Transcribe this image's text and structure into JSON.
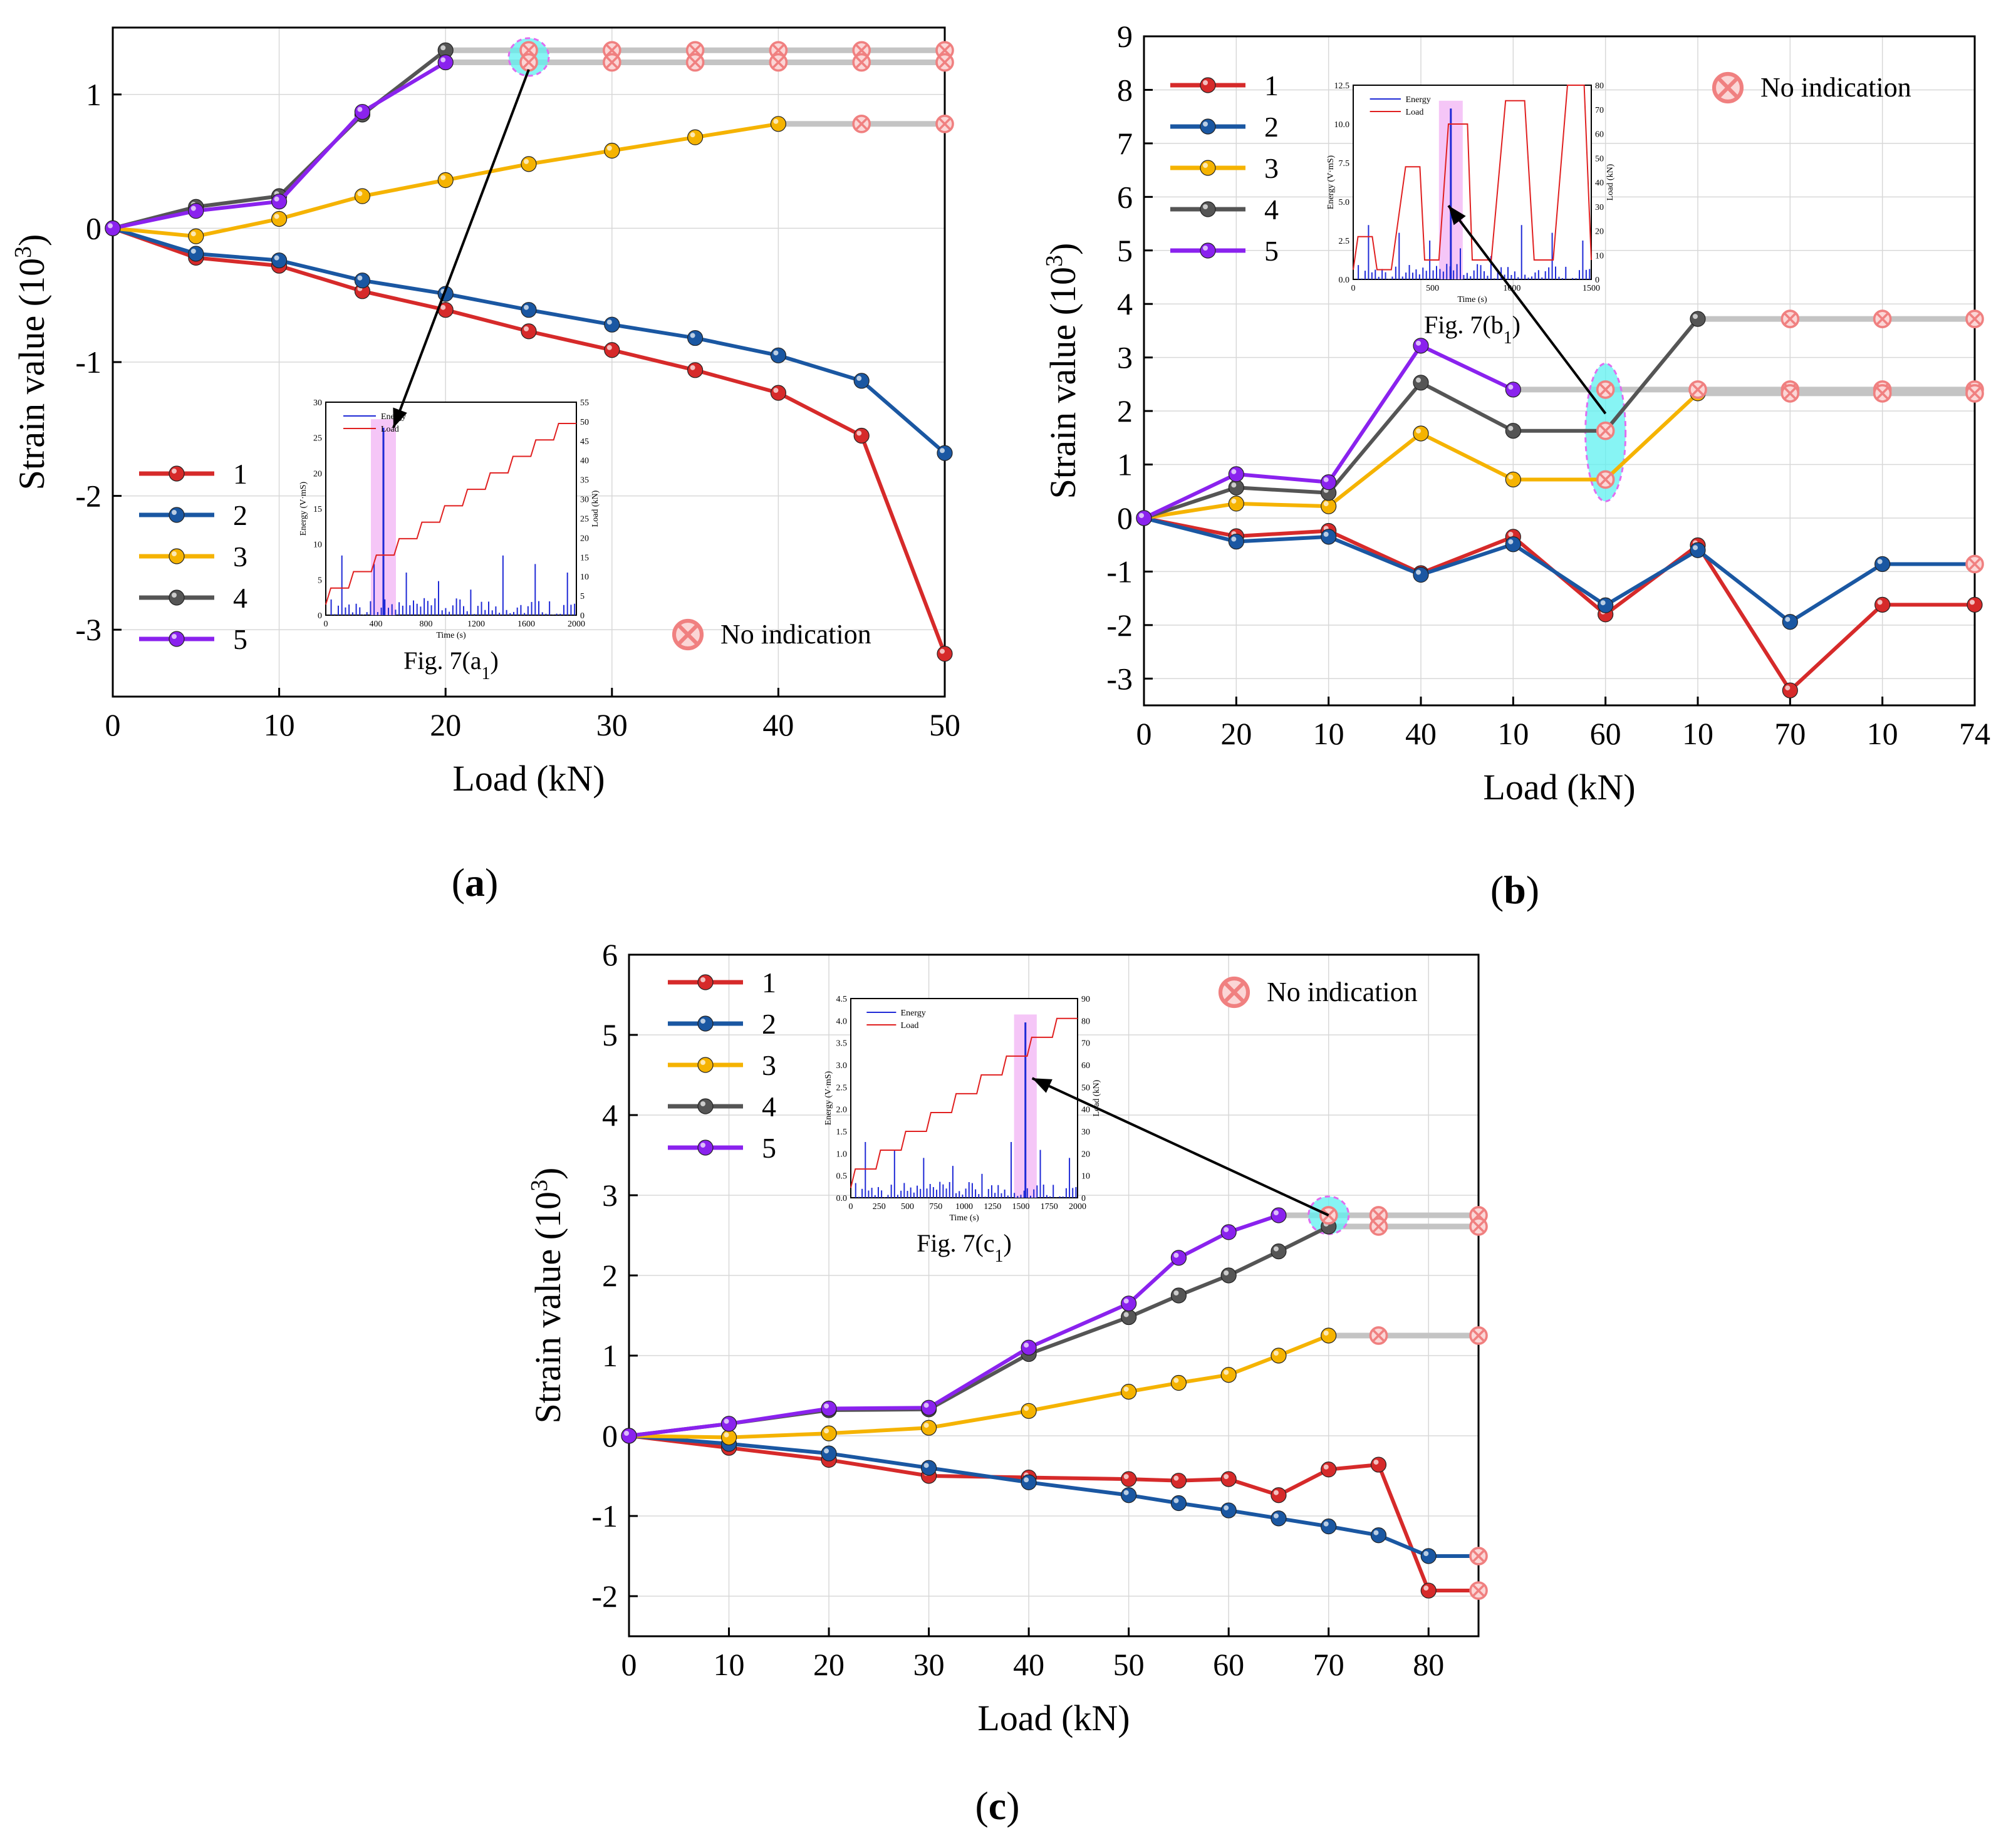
{
  "chart_data": [
    {
      "type": "line",
      "panel": "(a)",
      "panel_letter": "a",
      "xlabel": "Load (kN)",
      "ylabel": "Strain value (10^3)",
      "ylabel_base": "Strain value (10",
      "ylabel_exp": "3",
      "ylabel_close": ")",
      "xlim": [
        0,
        50
      ],
      "ylim": [
        -3.5,
        1.5
      ],
      "x_ticks": [
        0,
        10,
        20,
        30,
        40,
        50
      ],
      "x_tick_labels": [
        "0",
        "10",
        "20",
        "30",
        "40",
        "50"
      ],
      "y_ticks": [
        -3,
        -2,
        -1,
        0,
        1
      ],
      "y_tick_labels": [
        "-3",
        "-2",
        "-1",
        "0",
        "1"
      ],
      "grid": true,
      "legend_position": "lower-left",
      "no_indication_label": "No indication",
      "no_indication_position": "lower-right",
      "series": [
        {
          "name": "1",
          "color": "#d62a2a",
          "x": [
            0,
            5,
            10,
            15,
            20,
            25,
            30,
            35,
            40,
            45,
            50
          ],
          "values": [
            0,
            -0.22,
            -0.28,
            -0.47,
            -0.61,
            -0.77,
            -0.91,
            -1.06,
            -1.23,
            -1.55,
            -3.18
          ]
        },
        {
          "name": "2",
          "color": "#1a57a2",
          "x": [
            0,
            5,
            10,
            15,
            20,
            25,
            30,
            35,
            40,
            45,
            50
          ],
          "values": [
            0,
            -0.19,
            -0.24,
            -0.39,
            -0.49,
            -0.61,
            -0.72,
            -0.82,
            -0.95,
            -1.14,
            -1.68
          ]
        },
        {
          "name": "3",
          "color": "#f5b301",
          "x": [
            0,
            5,
            10,
            15,
            20,
            25,
            30,
            35,
            40,
            45,
            50
          ],
          "values": [
            0,
            -0.06,
            0.07,
            0.24,
            0.36,
            0.48,
            0.58,
            0.68,
            0.78,
            0.78,
            0.78
          ],
          "solid_until_index": 8
        },
        {
          "name": "4",
          "color": "#555555",
          "x": [
            0,
            5,
            10,
            15,
            20,
            25,
            30,
            35,
            40,
            45,
            50
          ],
          "values": [
            0,
            0.16,
            0.24,
            0.85,
            1.33,
            1.33,
            1.33,
            1.33,
            1.33,
            1.33,
            1.33
          ],
          "solid_until_index": 4
        },
        {
          "name": "5",
          "color": "#8a22ee",
          "x": [
            0,
            5,
            10,
            15,
            20,
            25,
            30,
            35,
            40,
            45,
            50
          ],
          "values": [
            0,
            0.13,
            0.2,
            0.87,
            1.24,
            1.24,
            1.24,
            1.24,
            1.24,
            1.24,
            1.24
          ],
          "solid_until_index": 4
        }
      ],
      "no_indication_points": [
        {
          "x": 25,
          "y": 1.33
        },
        {
          "x": 30,
          "y": 1.33
        },
        {
          "x": 35,
          "y": 1.33
        },
        {
          "x": 40,
          "y": 1.33
        },
        {
          "x": 45,
          "y": 1.33
        },
        {
          "x": 50,
          "y": 1.33
        },
        {
          "x": 25,
          "y": 1.24
        },
        {
          "x": 30,
          "y": 1.24
        },
        {
          "x": 35,
          "y": 1.24
        },
        {
          "x": 40,
          "y": 1.24
        },
        {
          "x": 45,
          "y": 1.24
        },
        {
          "x": 50,
          "y": 1.24
        },
        {
          "x": 45,
          "y": 0.78
        },
        {
          "x": 50,
          "y": 0.78
        }
      ],
      "highlight": {
        "x": 25,
        "y": 1.28
      },
      "inset": {
        "caption_prefix": "Fig. 7(a",
        "caption_sub": "1",
        "caption_suffix": ")",
        "legend": [
          "Energy",
          "Load"
        ],
        "xlabel": "Time (s)",
        "ylabel_left": "Energy (V·mS)",
        "ylabel_right": "Load (kN)",
        "x_tick_labels": [
          "0",
          "400",
          "800",
          "1200",
          "1600",
          "2000"
        ],
        "y_left_tick_labels": [
          "0",
          "5",
          "10",
          "15",
          "20",
          "25",
          "30"
        ],
        "y_right_tick_labels": [
          "0",
          "5",
          "10",
          "15",
          "20",
          "25",
          "30",
          "35",
          "40",
          "45",
          "50",
          "55"
        ]
      }
    },
    {
      "type": "line",
      "panel": "(b)",
      "panel_letter": "b",
      "xlabel": "Load (kN)",
      "ylabel": "Strain value (10^3)",
      "ylabel_base": "Strain value (10",
      "ylabel_exp": "3",
      "ylabel_close": ")",
      "xlim": [
        0,
        9
      ],
      "ylim": [
        -3.5,
        9
      ],
      "x_ticks": [
        0,
        1,
        2,
        3,
        4,
        5,
        6,
        7,
        8,
        9
      ],
      "x_tick_labels": [
        "0",
        "20",
        "10",
        "40",
        "10",
        "60",
        "10",
        "70",
        "10",
        "74"
      ],
      "y_ticks": [
        -3,
        -2,
        -1,
        0,
        1,
        2,
        3,
        4,
        5,
        6,
        7,
        8,
        9
      ],
      "y_tick_labels": [
        "-3",
        "-2",
        "-1",
        "0",
        "1",
        "2",
        "3",
        "4",
        "5",
        "6",
        "7",
        "8",
        "9"
      ],
      "grid": true,
      "legend_position": "upper-left",
      "no_indication_label": "No indication",
      "no_indication_position": "upper-right",
      "series": [
        {
          "name": "1",
          "color": "#d62a2a",
          "x": [
            0,
            1,
            2,
            3,
            4,
            5,
            6,
            7,
            8,
            9
          ],
          "values": [
            0,
            -0.34,
            -0.24,
            -1.03,
            -0.35,
            -1.8,
            -0.51,
            -3.22,
            -1.62,
            -1.62
          ]
        },
        {
          "name": "2",
          "color": "#1a57a2",
          "x": [
            0,
            1,
            2,
            3,
            4,
            5,
            6,
            7,
            8,
            9
          ],
          "values": [
            0,
            -0.44,
            -0.35,
            -1.06,
            -0.49,
            -1.63,
            -0.6,
            -1.94,
            -0.86,
            -0.86
          ]
        },
        {
          "name": "3",
          "color": "#f5b301",
          "x": [
            0,
            1,
            2,
            3,
            4,
            5,
            6,
            7,
            8,
            9
          ],
          "values": [
            0,
            0.27,
            0.22,
            1.58,
            0.72,
            0.72,
            2.33,
            2.33,
            2.33,
            2.33
          ],
          "solid_until_index": 6
        },
        {
          "name": "4",
          "color": "#555555",
          "x": [
            0,
            1,
            2,
            3,
            4,
            5,
            6,
            7,
            8,
            9
          ],
          "values": [
            0,
            0.57,
            0.47,
            2.53,
            1.63,
            1.63,
            3.72,
            3.72,
            3.72,
            3.72
          ],
          "solid_until_index": 6
        },
        {
          "name": "5",
          "color": "#8a22ee",
          "x": [
            0,
            1,
            2,
            3,
            4,
            5,
            6,
            7,
            8,
            9
          ],
          "values": [
            0,
            0.82,
            0.67,
            3.22,
            2.4,
            2.4,
            2.4,
            2.4,
            2.4,
            2.4
          ],
          "solid_until_index": 4
        }
      ],
      "no_indication_points": [
        {
          "x": 5,
          "y": 2.4
        },
        {
          "x": 6,
          "y": 2.4
        },
        {
          "x": 7,
          "y": 2.4
        },
        {
          "x": 8,
          "y": 2.4
        },
        {
          "x": 9,
          "y": 2.4
        },
        {
          "x": 5,
          "y": 1.63
        },
        {
          "x": 5,
          "y": 0.72
        },
        {
          "x": 7,
          "y": 3.72
        },
        {
          "x": 8,
          "y": 3.72
        },
        {
          "x": 9,
          "y": 3.72
        },
        {
          "x": 7,
          "y": 2.33
        },
        {
          "x": 8,
          "y": 2.33
        },
        {
          "x": 9,
          "y": 2.33
        },
        {
          "x": 9,
          "y": -0.86
        }
      ],
      "highlight": {
        "x": 5,
        "y": 1.6
      },
      "inset": {
        "caption_prefix": "Fig. 7(b",
        "caption_sub": "1",
        "caption_suffix": ")",
        "legend": [
          "Energy",
          "Load"
        ],
        "xlabel": "Time (s)",
        "ylabel_left": "Energy (V·mS)",
        "ylabel_right": "Load (kN)",
        "x_tick_labels": [
          "0",
          "500",
          "1000",
          "1500"
        ],
        "y_left_tick_labels": [
          "0.0",
          "2.5",
          "5.0",
          "7.5",
          "10.0",
          "12.5"
        ],
        "y_right_tick_labels": [
          "0",
          "10",
          "20",
          "30",
          "40",
          "50",
          "60",
          "70",
          "80"
        ]
      }
    },
    {
      "type": "line",
      "panel": "(c)",
      "panel_letter": "c",
      "xlabel": "Load (kN)",
      "ylabel": "Strain value (10^3)",
      "ylabel_base": "Strain value (10",
      "ylabel_exp": "3",
      "ylabel_close": ")",
      "xlim": [
        0,
        85
      ],
      "ylim": [
        -2.5,
        6
      ],
      "x_ticks": [
        0,
        10,
        20,
        30,
        40,
        50,
        60,
        70,
        80
      ],
      "x_tick_labels": [
        "0",
        "10",
        "20",
        "30",
        "40",
        "50",
        "60",
        "70",
        "80"
      ],
      "y_ticks": [
        -2,
        -1,
        0,
        1,
        2,
        3,
        4,
        5,
        6
      ],
      "y_tick_labels": [
        "-2",
        "-1",
        "0",
        "1",
        "2",
        "3",
        "4",
        "5",
        "6"
      ],
      "grid": true,
      "legend_position": "upper-left",
      "no_indication_label": "No indication",
      "no_indication_position": "upper-right",
      "series": [
        {
          "name": "1",
          "color": "#d62a2a",
          "x": [
            0,
            10,
            20,
            30,
            40,
            50,
            55,
            60,
            65,
            70,
            75,
            80,
            85
          ],
          "values": [
            0,
            -0.15,
            -0.3,
            -0.5,
            -0.52,
            -0.54,
            -0.56,
            -0.54,
            -0.74,
            -0.42,
            -0.36,
            -1.93,
            -1.93
          ]
        },
        {
          "name": "2",
          "color": "#1a57a2",
          "x": [
            0,
            10,
            20,
            30,
            40,
            50,
            55,
            60,
            65,
            70,
            75,
            80,
            85
          ],
          "values": [
            0,
            -0.1,
            -0.22,
            -0.4,
            -0.58,
            -0.74,
            -0.84,
            -0.93,
            -1.03,
            -1.13,
            -1.24,
            -1.5,
            -1.5
          ]
        },
        {
          "name": "3",
          "color": "#f5b301",
          "x": [
            0,
            10,
            20,
            30,
            40,
            50,
            55,
            60,
            65,
            70,
            75,
            80,
            85
          ],
          "values": [
            0,
            -0.02,
            0.03,
            0.1,
            0.31,
            0.55,
            0.66,
            0.76,
            1.0,
            1.25,
            1.25,
            1.25,
            1.25
          ],
          "solid_until_index": 9
        },
        {
          "name": "4",
          "color": "#555555",
          "x": [
            0,
            10,
            20,
            30,
            40,
            50,
            55,
            60,
            65,
            70,
            75,
            80,
            85
          ],
          "values": [
            0,
            0.15,
            0.32,
            0.33,
            1.02,
            1.48,
            1.75,
            2.0,
            2.3,
            2.61,
            2.61,
            2.61,
            2.61
          ],
          "solid_until_index": 9
        },
        {
          "name": "5",
          "color": "#8a22ee",
          "x": [
            0,
            10,
            20,
            30,
            40,
            50,
            55,
            60,
            65,
            70,
            75,
            80,
            85
          ],
          "values": [
            0,
            0.15,
            0.34,
            0.35,
            1.1,
            1.65,
            2.22,
            2.54,
            2.75,
            2.75,
            2.75,
            2.75,
            2.75
          ],
          "solid_until_index": 8
        }
      ],
      "no_indication_points": [
        {
          "x": 70,
          "y": 2.75
        },
        {
          "x": 75,
          "y": 2.75
        },
        {
          "x": 85,
          "y": 2.75
        },
        {
          "x": 75,
          "y": 2.61
        },
        {
          "x": 85,
          "y": 2.61
        },
        {
          "x": 75,
          "y": 1.25
        },
        {
          "x": 85,
          "y": 1.25
        },
        {
          "x": 85,
          "y": -1.5
        },
        {
          "x": 85,
          "y": -1.93
        }
      ],
      "highlight": {
        "x": 70,
        "y": 2.75
      },
      "inset": {
        "caption_prefix": "Fig. 7(c",
        "caption_sub": "1",
        "caption_suffix": ")",
        "legend": [
          "Energy",
          "Load"
        ],
        "xlabel": "Time (s)",
        "ylabel_left": "Energy (V·mS)",
        "ylabel_right": "Load (kN)",
        "x_tick_labels": [
          "0",
          "250",
          "500",
          "750",
          "1000",
          "1250",
          "1500",
          "1750",
          "2000"
        ],
        "y_left_tick_labels": [
          "0.0",
          "0.5",
          "1.0",
          "1.5",
          "2.0",
          "2.5",
          "3.0",
          "3.5",
          "4.0",
          "4.5"
        ],
        "y_right_tick_labels": [
          "0",
          "10",
          "20",
          "30",
          "40",
          "50",
          "60",
          "70",
          "80",
          "90"
        ]
      }
    }
  ]
}
